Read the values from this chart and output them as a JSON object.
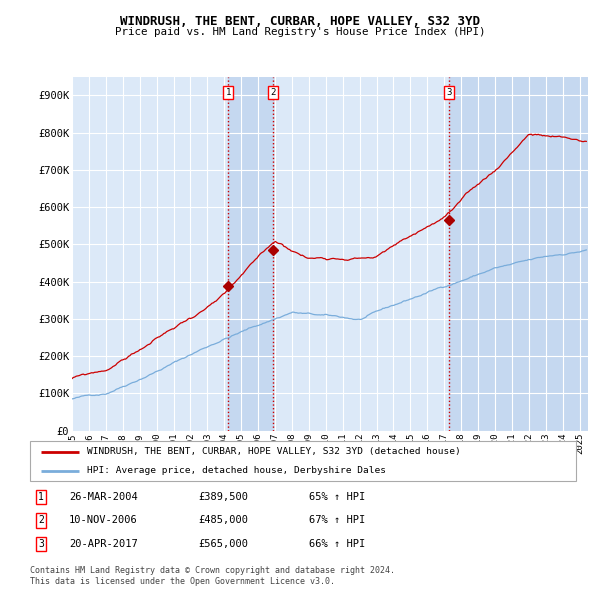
{
  "title": "WINDRUSH, THE BENT, CURBAR, HOPE VALLEY, S32 3YD",
  "subtitle": "Price paid vs. HM Land Registry's House Price Index (HPI)",
  "legend_line1": "WINDRUSH, THE BENT, CURBAR, HOPE VALLEY, S32 3YD (detached house)",
  "legend_line2": "HPI: Average price, detached house, Derbyshire Dales",
  "footnote1": "Contains HM Land Registry data © Crown copyright and database right 2024.",
  "footnote2": "This data is licensed under the Open Government Licence v3.0.",
  "transactions": [
    {
      "num": 1,
      "date": "26-MAR-2004",
      "price": 389500,
      "pct": "65% ↑ HPI",
      "x_year": 2004.23
    },
    {
      "num": 2,
      "date": "10-NOV-2006",
      "price": 485000,
      "pct": "67% ↑ HPI",
      "x_year": 2006.86
    },
    {
      "num": 3,
      "date": "20-APR-2017",
      "price": 565000,
      "pct": "66% ↑ HPI",
      "x_year": 2017.3
    }
  ],
  "x_start": 1995.0,
  "x_end": 2025.5,
  "y_min": 0,
  "y_max": 950000,
  "yticks": [
    0,
    100000,
    200000,
    300000,
    400000,
    500000,
    600000,
    700000,
    800000,
    900000
  ],
  "ylabels": [
    "£0",
    "£100K",
    "£200K",
    "£300K",
    "£400K",
    "£500K",
    "£600K",
    "£700K",
    "£800K",
    "£900K"
  ],
  "xticks": [
    1995,
    1996,
    1997,
    1998,
    1999,
    2000,
    2001,
    2002,
    2003,
    2004,
    2005,
    2006,
    2007,
    2008,
    2009,
    2010,
    2011,
    2012,
    2013,
    2014,
    2015,
    2016,
    2017,
    2018,
    2019,
    2020,
    2021,
    2022,
    2023,
    2024,
    2025
  ],
  "plot_bg_color": "#dce9f8",
  "grid_color": "#ffffff",
  "hpi_line_color": "#7aaddb",
  "price_line_color": "#cc0000",
  "dot_color": "#aa0000",
  "vline_color": "#cc0000",
  "shade_color": "#c5d8f0"
}
